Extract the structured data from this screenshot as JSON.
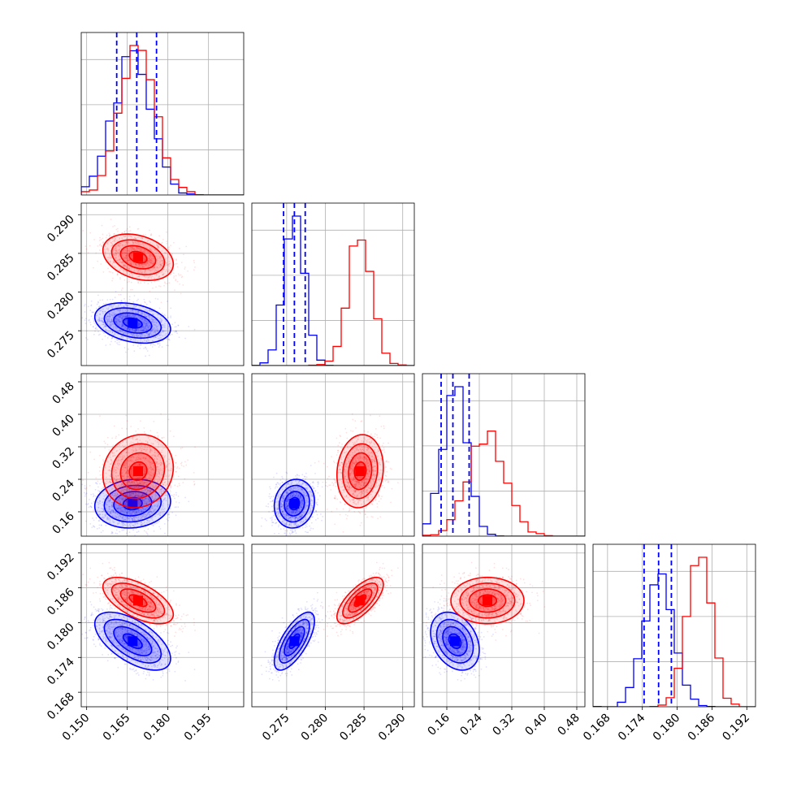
{
  "chart_data": {
    "type": "corner",
    "title": "",
    "grid": true,
    "legend": "none",
    "series": [
      {
        "color": "#0000ff"
      },
      {
        "color": "#ff0000"
      }
    ],
    "params": [
      {
        "range": [
          0.148,
          0.208
        ],
        "ticks": [
          0.15,
          0.165,
          0.18,
          0.195
        ],
        "tick_labels": [
          "0.150",
          "0.165",
          "0.180",
          "0.195"
        ]
      },
      {
        "range": [
          0.2705,
          0.2915
        ],
        "ticks": [
          0.275,
          0.28,
          0.285,
          0.29
        ],
        "tick_labels": [
          "0.275",
          "0.280",
          "0.285",
          "0.290"
        ]
      },
      {
        "range": [
          0.1,
          0.5
        ],
        "ticks": [
          0.16,
          0.24,
          0.32,
          0.4,
          0.48
        ],
        "tick_labels": [
          "0.16",
          "0.24",
          "0.32",
          "0.40",
          "0.48"
        ]
      },
      {
        "range": [
          0.1655,
          0.1935
        ],
        "ticks": [
          0.168,
          0.174,
          0.18,
          0.186,
          0.192
        ],
        "tick_labels": [
          "0.168",
          "0.174",
          "0.180",
          "0.186",
          "0.192"
        ]
      }
    ],
    "quantiles_blue": [
      [
        0.1611,
        0.1685,
        0.1758
      ],
      [
        0.2746,
        0.276,
        0.2774
      ],
      [
        0.146,
        0.175,
        0.215
      ],
      [
        0.1743,
        0.1768,
        0.179
      ]
    ],
    "distributions": {
      "blue": {
        "mean": [
          0.167,
          0.276,
          0.18,
          0.1768
        ],
        "sd": [
          0.007,
          0.0013,
          0.03,
          0.0025
        ],
        "corr": {
          "0-1": -0.3,
          "0-2": 0.1,
          "0-3": -0.6,
          "1-2": 0.1,
          "1-3": 0.7,
          "2-3": -0.3
        }
      },
      "red": {
        "mean": [
          0.169,
          0.2845,
          0.26,
          0.1838
        ],
        "sd": [
          0.0065,
          0.0015,
          0.045,
          0.002
        ],
        "corr": {
          "0-1": -0.3,
          "0-2": 0.1,
          "0-3": -0.6,
          "1-2": 0.1,
          "1-3": 0.7,
          "2-3": 0.0
        }
      }
    }
  }
}
